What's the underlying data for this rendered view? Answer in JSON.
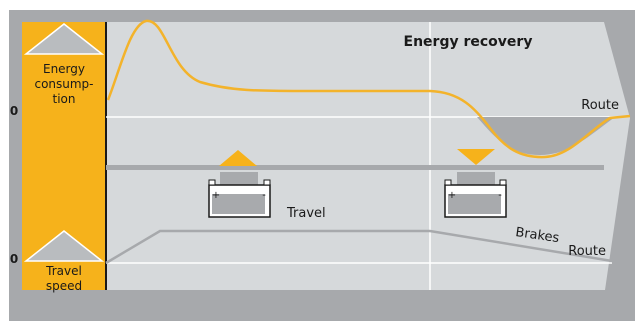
{
  "title": "Energy recovery",
  "top_panel": {
    "axis_label": "Energy consumption",
    "axis_label_lines": [
      "Energy",
      "consump-",
      "tion"
    ],
    "zero_label": "0",
    "baseline_label": "Route"
  },
  "bottom_panel": {
    "axis_label": "Travel speed",
    "axis_label_lines": [
      "Travel",
      "speed"
    ],
    "zero_label": "0",
    "baseline_label": "Route",
    "phase_labels": [
      "Travel",
      "Brakes"
    ]
  },
  "batteries": [
    {
      "state": "charging",
      "arrow": "up",
      "plus": "+",
      "minus": "-"
    },
    {
      "state": "recovering",
      "arrow": "down",
      "plus": "+",
      "minus": "-"
    }
  ],
  "colors": {
    "panel_bg": "#d6d9db",
    "frame": "#a7a9ac",
    "accent": "#f6b21b",
    "curve": "#f3b32b",
    "recovery_fill": "#a8aaad",
    "gridline": "#ffffff",
    "text": "#1a1a1a"
  }
}
